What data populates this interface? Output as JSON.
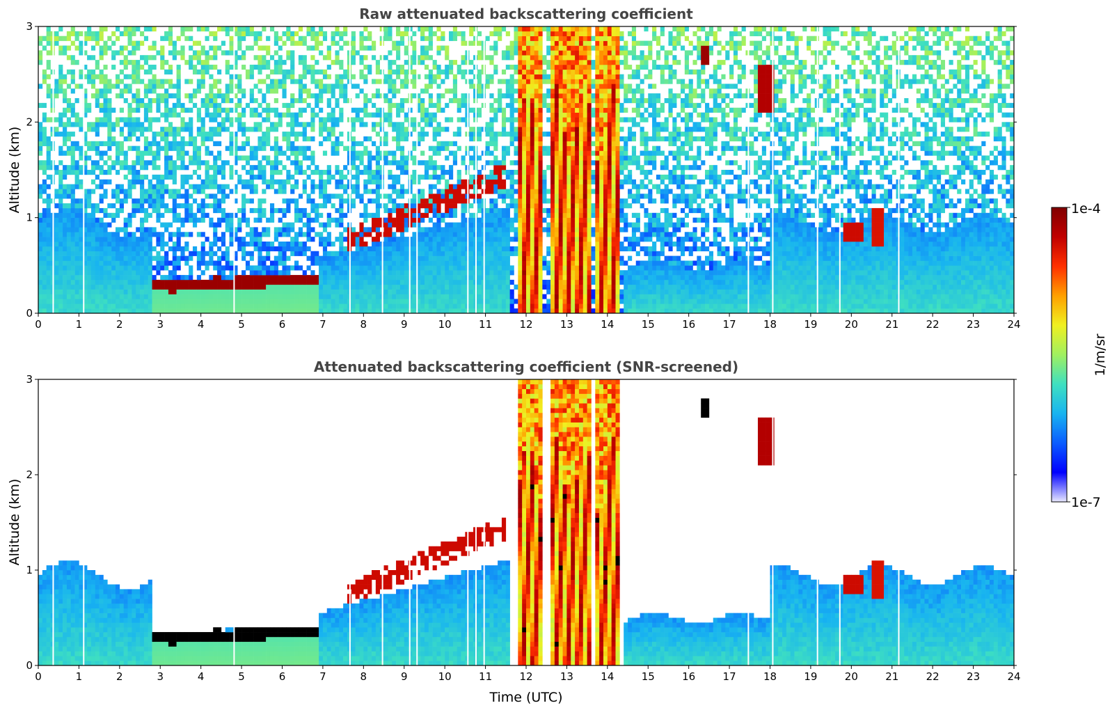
{
  "chart_data": [
    {
      "type": "heatmap",
      "title": "Raw attenuated backscattering coefficient",
      "xlabel": "",
      "ylabel": "Altitude (km)",
      "xlim": [
        0,
        24
      ],
      "ylim": [
        0,
        3
      ],
      "x_ticks": [
        "0",
        "1",
        "2",
        "3",
        "4",
        "5",
        "6",
        "7",
        "8",
        "9",
        "10",
        "11",
        "12",
        "13",
        "14",
        "15",
        "16",
        "17",
        "18",
        "19",
        "20",
        "21",
        "22",
        "23",
        "24"
      ],
      "y_ticks": [
        "0",
        "1",
        "2",
        "3"
      ],
      "features": [
        {
          "description_label": "boundary layer top",
          "x": [
            0,
            24
          ],
          "y_range": [
            0,
            1.0
          ]
        },
        {
          "description_label": "thin layer",
          "x_range": [
            2.8,
            6.9
          ],
          "y_range": [
            0.2,
            0.5
          ]
        },
        {
          "description_label": "clouds",
          "x_range": [
            7,
            9
          ],
          "y_range": [
            0.6,
            1.2
          ]
        },
        {
          "description_label": "convective clouds",
          "x_range": [
            11.8,
            14.3
          ],
          "y_range": [
            0,
            3
          ]
        },
        {
          "description_label": "high clouds",
          "x_range": [
            16.3,
            18.1
          ],
          "y_range": [
            2.0,
            2.8
          ]
        },
        {
          "description_label": "clouds",
          "x_range": [
            19.8,
            20.8
          ],
          "y_range": [
            0.7,
            1.0
          ]
        }
      ]
    },
    {
      "type": "heatmap",
      "title": "Attenuated backscattering coefficient (SNR-screened)",
      "xlabel": "Time (UTC)",
      "ylabel": "Altitude (km)",
      "xlim": [
        0,
        24
      ],
      "ylim": [
        0,
        3
      ],
      "x_ticks": [
        "0",
        "1",
        "2",
        "3",
        "4",
        "5",
        "6",
        "7",
        "8",
        "9",
        "10",
        "11",
        "12",
        "13",
        "14",
        "15",
        "16",
        "17",
        "18",
        "19",
        "20",
        "21",
        "22",
        "23",
        "24"
      ],
      "y_ticks": [
        "0",
        "1",
        "2",
        "3"
      ]
    }
  ],
  "colorbar": {
    "label": "1/m/sr",
    "max_label": "1e-4",
    "min_label": "1e-7",
    "scale": "log",
    "colormap": [
      "#e8e8ff",
      "#0000ff",
      "#0a5cff",
      "#18b4f0",
      "#3fe0c0",
      "#a0f060",
      "#f0f020",
      "#ffa000",
      "#ff3000",
      "#c00000",
      "#800000"
    ]
  }
}
